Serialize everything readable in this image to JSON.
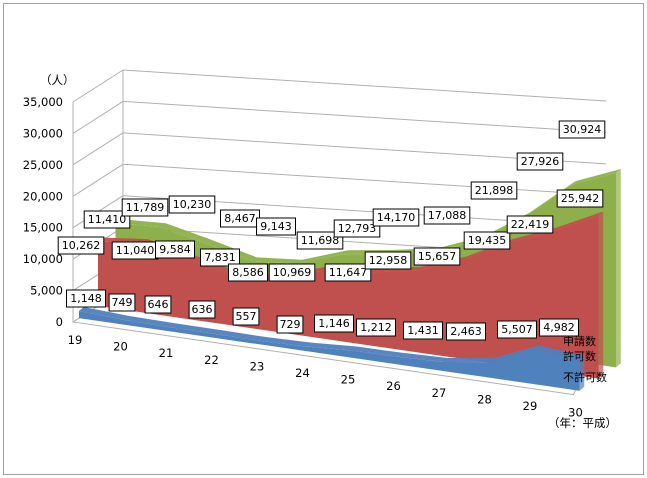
{
  "chart_data": {
    "type": "area",
    "y_unit": "（人）",
    "x_unit": "（年：平成）",
    "yticks": [
      "35,000",
      "30,000",
      "25,000",
      "20,000",
      "15,000",
      "10,000",
      "5,000",
      "0"
    ],
    "ylim": [
      0,
      35000
    ],
    "categories": [
      "19",
      "20",
      "21",
      "22",
      "23",
      "24",
      "25",
      "26",
      "27",
      "28",
      "29",
      "30"
    ],
    "series": [
      {
        "name": "申請数",
        "color": "#8db04a",
        "values": [
          11410,
          11789,
          10230,
          8467,
          9143,
          11698,
          12793,
          14170,
          17088,
          21898,
          27926,
          30924
        ],
        "labels": [
          "11,410",
          "11,789",
          "10,230",
          "8,467",
          "9,143",
          "11,698",
          "12,793",
          "14,170",
          "17,088",
          "21,898",
          "27,926",
          "30,924"
        ]
      },
      {
        "name": "許可数",
        "color": "#c0504d",
        "values": [
          10262,
          11040,
          9584,
          7831,
          8586,
          10969,
          11647,
          12958,
          15657,
          19435,
          22419,
          25942
        ],
        "labels": [
          "10,262",
          "11,040",
          "9,584",
          "7,831",
          "8,586",
          "10,969",
          "11,647",
          "12,958",
          "15,657",
          "19,435",
          "22,419",
          "25,942"
        ]
      },
      {
        "name": "不許可数",
        "color": "#4f81bd",
        "values": [
          1148,
          749,
          646,
          636,
          557,
          729,
          1146,
          1212,
          1431,
          2463,
          5507,
          4982
        ],
        "labels": [
          "1,148",
          "749",
          "646",
          "636",
          "557",
          "729",
          "1,146",
          "1,212",
          "1,431",
          "2,463",
          "5,507",
          "4,982"
        ]
      }
    ],
    "legend": "right",
    "grid": true
  }
}
